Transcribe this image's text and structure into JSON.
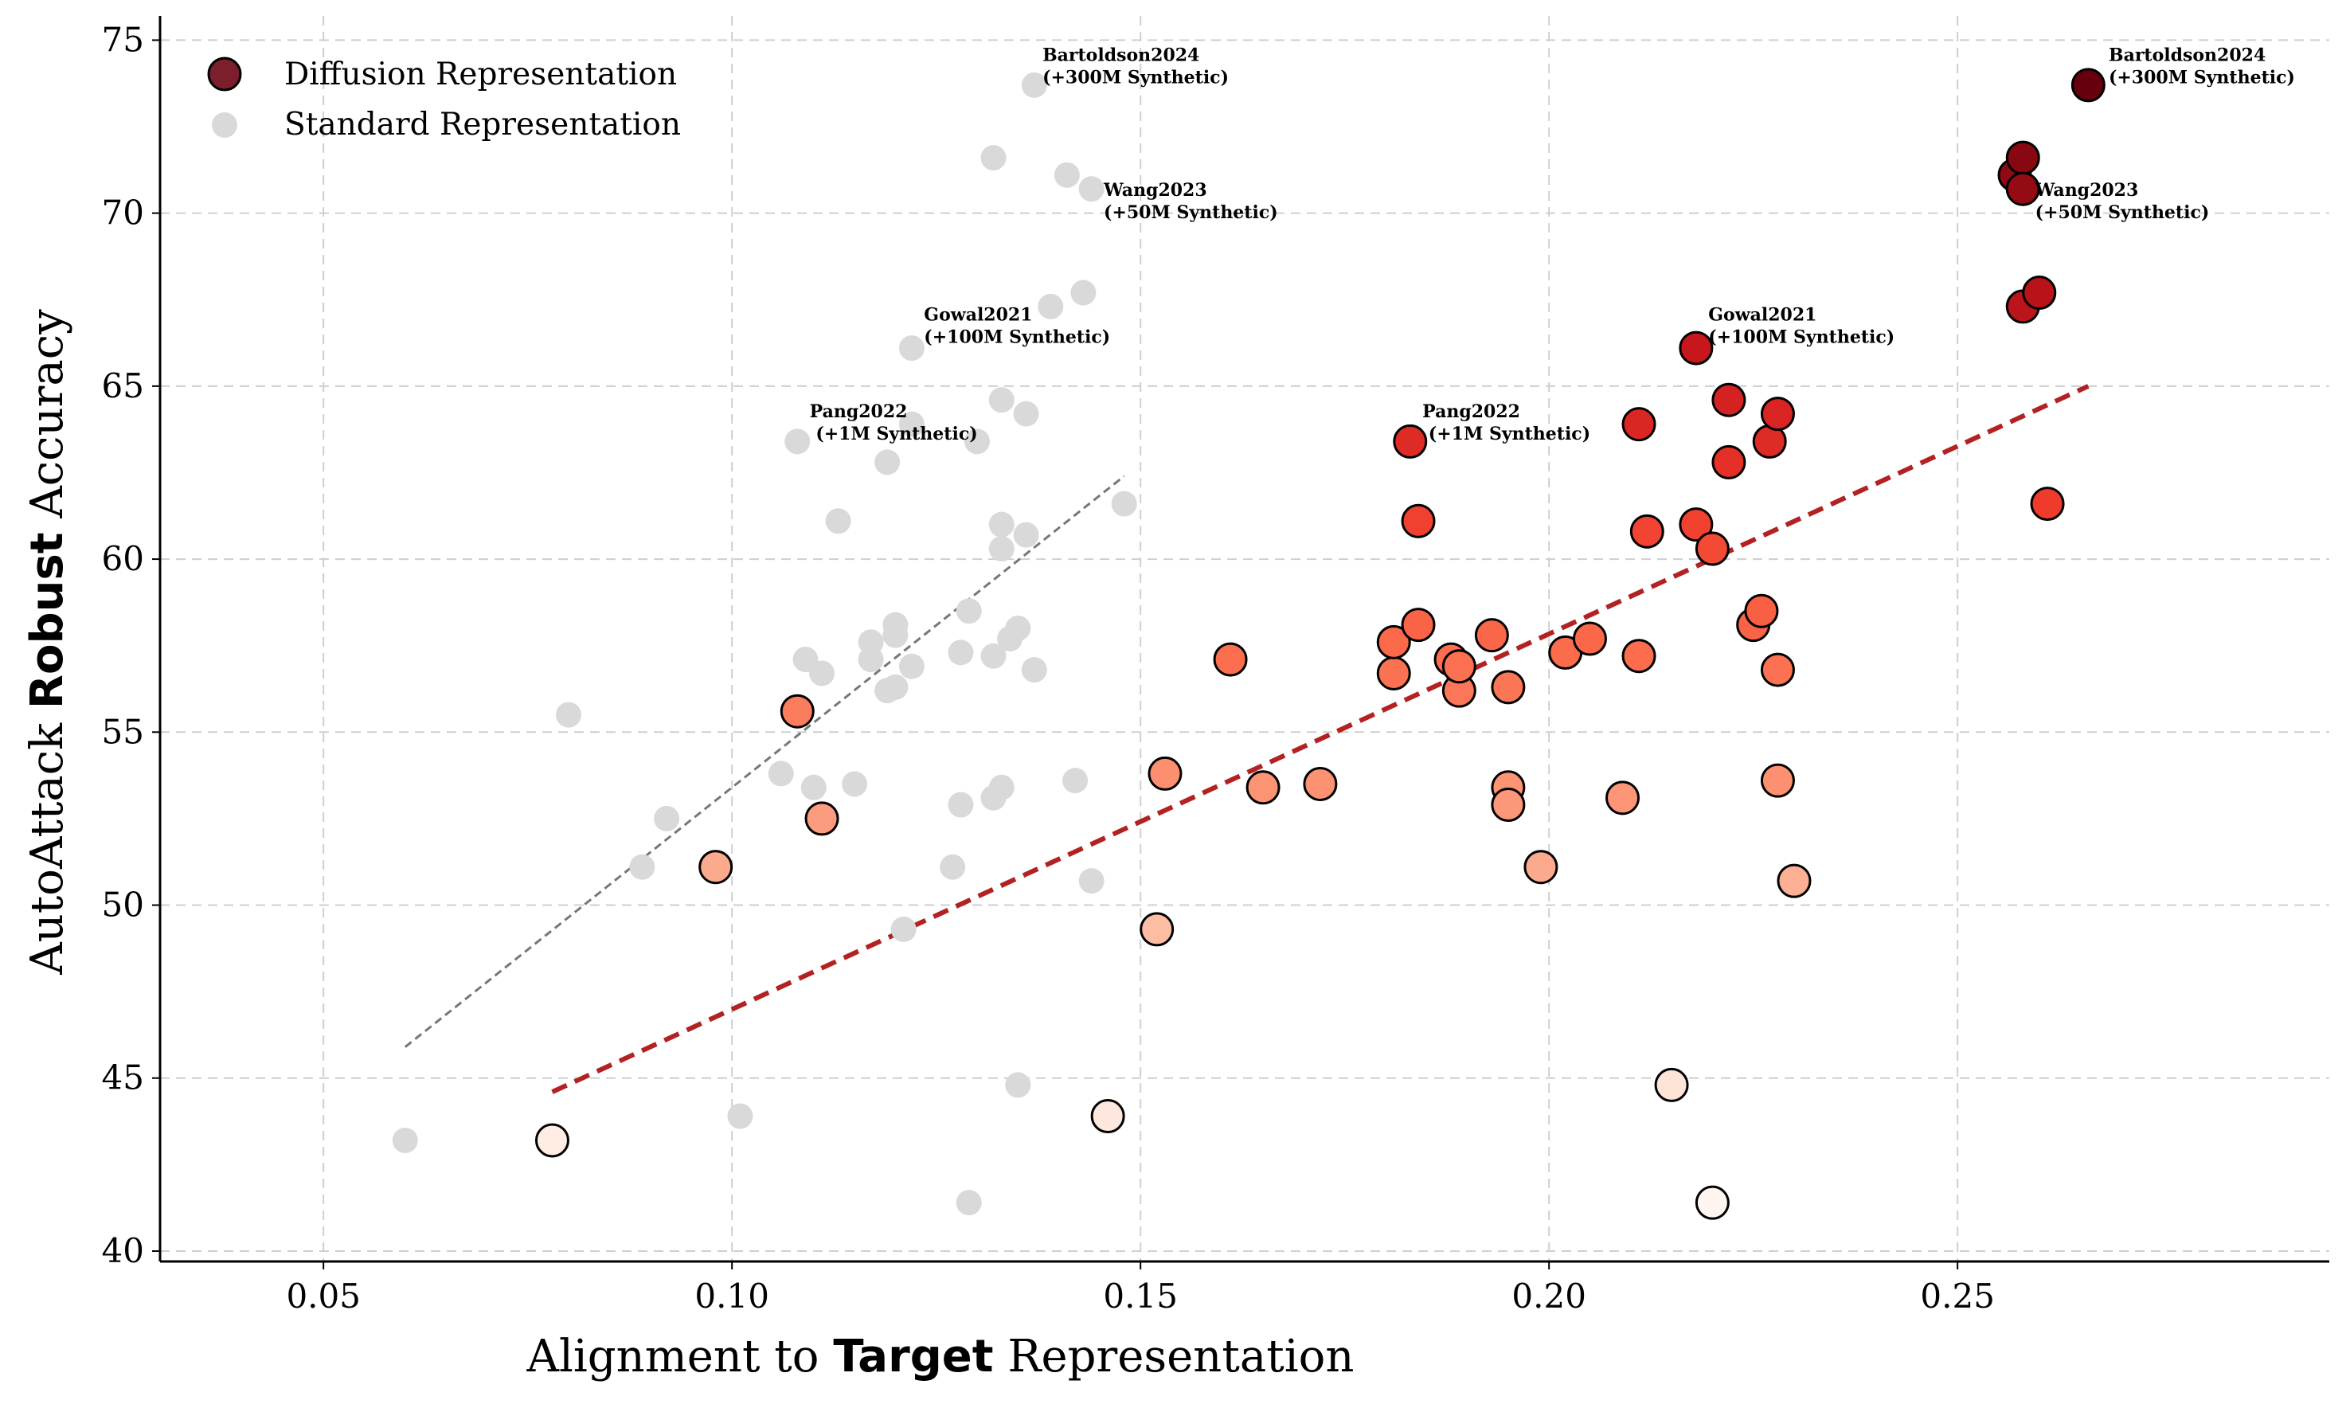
{
  "chart_data": {
    "type": "scatter",
    "xlabel_parts": [
      "Alignment to ",
      "Target",
      " Representation"
    ],
    "ylabel_parts": [
      "AutoAttack ",
      "Robust",
      " Accuracy"
    ],
    "xlim": [
      0.03,
      0.2955
    ],
    "ylim": [
      39.7,
      75.7
    ],
    "x_ticks": [
      0.05,
      0.1,
      0.15,
      0.2,
      0.25
    ],
    "x_tick_labels": [
      "0.05",
      "0.10",
      "0.15",
      "0.20",
      "0.25"
    ],
    "y_ticks": [
      40,
      45,
      50,
      55,
      60,
      65,
      70,
      75
    ],
    "y_tick_labels": [
      "40",
      "45",
      "50",
      "55",
      "60",
      "65",
      "70",
      "75"
    ],
    "grid": true,
    "legend": {
      "placement": "top-left",
      "entries": [
        "Diffusion Representation",
        "Standard Representation"
      ]
    },
    "series": [
      {
        "name": "Diffusion Representation",
        "color_scale": [
          "#fff5f0",
          "#67000d"
        ],
        "points": [
          [
            0.078,
            43.2
          ],
          [
            0.146,
            43.9
          ],
          [
            0.215,
            44.8
          ],
          [
            0.22,
            41.4
          ],
          [
            0.098,
            51.1
          ],
          [
            0.108,
            55.6
          ],
          [
            0.111,
            52.5
          ],
          [
            0.152,
            49.3
          ],
          [
            0.153,
            53.8
          ],
          [
            0.161,
            57.1
          ],
          [
            0.165,
            53.4
          ],
          [
            0.172,
            53.5
          ],
          [
            0.181,
            56.7
          ],
          [
            0.181,
            57.6
          ],
          [
            0.183,
            63.4
          ],
          [
            0.184,
            61.1
          ],
          [
            0.184,
            58.1
          ],
          [
            0.188,
            57.1
          ],
          [
            0.189,
            56.2
          ],
          [
            0.189,
            56.9
          ],
          [
            0.193,
            57.8
          ],
          [
            0.195,
            56.3
          ],
          [
            0.195,
            53.4
          ],
          [
            0.195,
            52.9
          ],
          [
            0.199,
            51.1
          ],
          [
            0.202,
            57.3
          ],
          [
            0.205,
            57.7
          ],
          [
            0.209,
            53.1
          ],
          [
            0.211,
            63.9
          ],
          [
            0.211,
            57.2
          ],
          [
            0.212,
            60.8
          ],
          [
            0.218,
            66.1
          ],
          [
            0.218,
            61.0
          ],
          [
            0.22,
            60.3
          ],
          [
            0.222,
            64.6
          ],
          [
            0.222,
            62.8
          ],
          [
            0.225,
            58.1
          ],
          [
            0.226,
            58.5
          ],
          [
            0.227,
            63.4
          ],
          [
            0.228,
            64.2
          ],
          [
            0.228,
            56.8
          ],
          [
            0.228,
            53.6
          ],
          [
            0.23,
            50.7
          ],
          [
            0.257,
            71.1
          ],
          [
            0.258,
            71.6
          ],
          [
            0.258,
            70.7
          ],
          [
            0.258,
            67.3
          ],
          [
            0.26,
            67.7
          ],
          [
            0.261,
            61.6
          ],
          [
            0.266,
            73.7
          ]
        ]
      },
      {
        "name": "Standard Representation",
        "color": "#d9d9d9",
        "points": [
          [
            0.06,
            43.2
          ],
          [
            0.08,
            55.5
          ],
          [
            0.089,
            51.1
          ],
          [
            0.092,
            52.5
          ],
          [
            0.101,
            43.9
          ],
          [
            0.106,
            53.8
          ],
          [
            0.108,
            63.4
          ],
          [
            0.109,
            57.1
          ],
          [
            0.11,
            53.4
          ],
          [
            0.111,
            56.7
          ],
          [
            0.113,
            61.1
          ],
          [
            0.115,
            53.5
          ],
          [
            0.117,
            57.6
          ],
          [
            0.117,
            57.1
          ],
          [
            0.119,
            56.2
          ],
          [
            0.119,
            62.8
          ],
          [
            0.12,
            58.1
          ],
          [
            0.12,
            57.8
          ],
          [
            0.12,
            56.3
          ],
          [
            0.121,
            49.3
          ],
          [
            0.122,
            56.9
          ],
          [
            0.122,
            66.1
          ],
          [
            0.122,
            63.9
          ],
          [
            0.127,
            51.1
          ],
          [
            0.128,
            57.3
          ],
          [
            0.128,
            52.9
          ],
          [
            0.129,
            58.5
          ],
          [
            0.129,
            41.4
          ],
          [
            0.13,
            63.4
          ],
          [
            0.132,
            57.2
          ],
          [
            0.132,
            53.1
          ],
          [
            0.132,
            71.6
          ],
          [
            0.133,
            60.3
          ],
          [
            0.133,
            61.0
          ],
          [
            0.133,
            53.4
          ],
          [
            0.133,
            64.6
          ],
          [
            0.134,
            57.7
          ],
          [
            0.135,
            44.8
          ],
          [
            0.135,
            58.0
          ],
          [
            0.136,
            64.2
          ],
          [
            0.136,
            60.7
          ],
          [
            0.137,
            73.7
          ],
          [
            0.137,
            56.8
          ],
          [
            0.139,
            67.3
          ],
          [
            0.141,
            71.1
          ],
          [
            0.142,
            53.6
          ],
          [
            0.143,
            67.7
          ],
          [
            0.144,
            70.7
          ],
          [
            0.144,
            50.7
          ],
          [
            0.148,
            61.6
          ]
        ]
      }
    ],
    "trend_lines": [
      {
        "series": "Diffusion Representation",
        "x": [
          0.078,
          0.266
        ],
        "y": [
          44.6,
          65.0
        ],
        "color": "#b22222"
      },
      {
        "series": "Standard Representation",
        "x": [
          0.06,
          0.148
        ],
        "y": [
          45.9,
          62.4
        ],
        "color": "#777777"
      }
    ],
    "annotations": [
      {
        "lines": [
          "Bartoldson2024",
          "(+300M Synthetic)"
        ],
        "x": 0.138,
        "y": 74.4
      },
      {
        "lines": [
          "Wang2023",
          "(+50M Synthetic)"
        ],
        "x": 0.1455,
        "y": 70.5
      },
      {
        "lines": [
          "Gowal2021",
          "(+100M Synthetic)"
        ],
        "x": 0.1235,
        "y": 66.9
      },
      {
        "lines": [
          "Pang2022",
          " (+1M Synthetic)"
        ],
        "x": 0.1095,
        "y": 64.1
      },
      {
        "lines": [
          "Bartoldson2024",
          "(+300M Synthetic)"
        ],
        "x": 0.2685,
        "y": 74.4
      },
      {
        "lines": [
          "Wang2023",
          "(+50M Synthetic)"
        ],
        "x": 0.2595,
        "y": 70.5
      },
      {
        "lines": [
          "Gowal2021",
          "(+100M Synthetic)"
        ],
        "x": 0.2195,
        "y": 66.9
      },
      {
        "lines": [
          "Pang2022",
          " (+1M Synthetic)"
        ],
        "x": 0.1845,
        "y": 64.1
      }
    ]
  }
}
